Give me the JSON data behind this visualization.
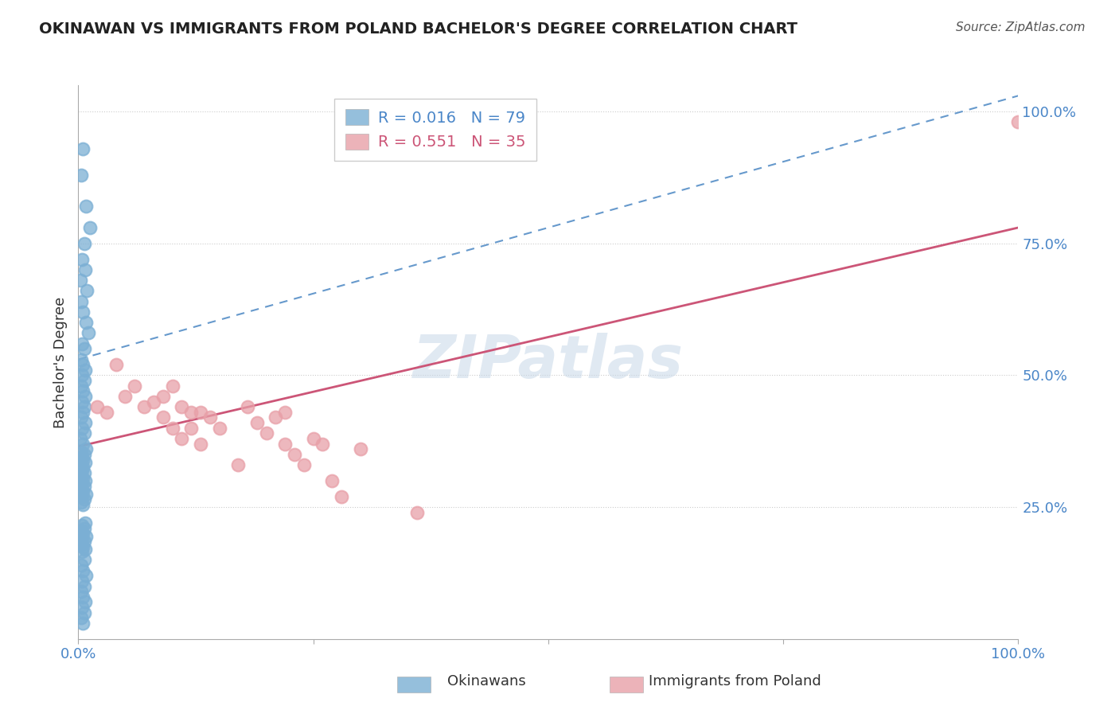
{
  "title": "OKINAWAN VS IMMIGRANTS FROM POLAND BACHELOR'S DEGREE CORRELATION CHART",
  "source": "Source: ZipAtlas.com",
  "ylabel": "Bachelor's Degree",
  "watermark": "ZIPatlas",
  "blue_label": "Okinawans",
  "pink_label": "Immigrants from Poland",
  "blue_R": 0.016,
  "blue_N": 79,
  "pink_R": 0.551,
  "pink_N": 35,
  "blue_color": "#7bafd4",
  "pink_color": "#e8a0a8",
  "blue_line_color": "#6699cc",
  "pink_line_color": "#cc5577",
  "blue_x": [
    0.005,
    0.003,
    0.008,
    0.012,
    0.006,
    0.004,
    0.007,
    0.002,
    0.009,
    0.003,
    0.005,
    0.008,
    0.011,
    0.004,
    0.006,
    0.003,
    0.005,
    0.007,
    0.004,
    0.006,
    0.003,
    0.005,
    0.007,
    0.004,
    0.006,
    0.005,
    0.003,
    0.007,
    0.004,
    0.006,
    0.002,
    0.005,
    0.008,
    0.003,
    0.006,
    0.004,
    0.005,
    0.007,
    0.003,
    0.005,
    0.004,
    0.006,
    0.003,
    0.005,
    0.007,
    0.004,
    0.006,
    0.003,
    0.005,
    0.008,
    0.004,
    0.006,
    0.003,
    0.005,
    0.007,
    0.004,
    0.006,
    0.003,
    0.005,
    0.008,
    0.004,
    0.006,
    0.003,
    0.005,
    0.007,
    0.004,
    0.006,
    0.003,
    0.005,
    0.008,
    0.004,
    0.006,
    0.003,
    0.005,
    0.007,
    0.004,
    0.006,
    0.003,
    0.005
  ],
  "blue_y": [
    0.93,
    0.88,
    0.82,
    0.78,
    0.75,
    0.72,
    0.7,
    0.68,
    0.66,
    0.64,
    0.62,
    0.6,
    0.58,
    0.56,
    0.55,
    0.53,
    0.52,
    0.51,
    0.5,
    0.49,
    0.48,
    0.47,
    0.46,
    0.45,
    0.44,
    0.43,
    0.42,
    0.41,
    0.4,
    0.39,
    0.38,
    0.37,
    0.36,
    0.355,
    0.35,
    0.345,
    0.34,
    0.335,
    0.33,
    0.325,
    0.32,
    0.315,
    0.31,
    0.305,
    0.3,
    0.295,
    0.29,
    0.285,
    0.28,
    0.275,
    0.27,
    0.265,
    0.26,
    0.255,
    0.22,
    0.215,
    0.21,
    0.205,
    0.2,
    0.195,
    0.19,
    0.185,
    0.18,
    0.175,
    0.17,
    0.165,
    0.15,
    0.14,
    0.13,
    0.12,
    0.11,
    0.1,
    0.09,
    0.08,
    0.07,
    0.06,
    0.05,
    0.04,
    0.03
  ],
  "pink_x": [
    0.02,
    0.05,
    0.03,
    0.06,
    0.08,
    0.1,
    0.07,
    0.09,
    0.12,
    0.09,
    0.11,
    0.13,
    0.1,
    0.12,
    0.14,
    0.11,
    0.13,
    0.15,
    0.04,
    0.19,
    0.22,
    0.2,
    0.18,
    0.21,
    0.25,
    0.22,
    0.26,
    0.23,
    0.27,
    0.3,
    0.17,
    0.24,
    0.28,
    0.36,
    1.0
  ],
  "pink_y": [
    0.44,
    0.46,
    0.43,
    0.48,
    0.45,
    0.48,
    0.44,
    0.46,
    0.43,
    0.42,
    0.44,
    0.43,
    0.4,
    0.4,
    0.42,
    0.38,
    0.37,
    0.4,
    0.52,
    0.41,
    0.43,
    0.39,
    0.44,
    0.42,
    0.38,
    0.37,
    0.37,
    0.35,
    0.3,
    0.36,
    0.33,
    0.33,
    0.27,
    0.24,
    0.98
  ],
  "blue_line_x0": 0.0,
  "blue_line_y0": 0.53,
  "blue_line_x1": 1.0,
  "blue_line_y1": 1.03,
  "pink_line_x0": 0.0,
  "pink_line_y0": 0.365,
  "pink_line_x1": 1.0,
  "pink_line_y1": 0.78,
  "xlim": [
    0.0,
    1.0
  ],
  "ylim": [
    0.0,
    1.05
  ],
  "yticks": [
    0.25,
    0.5,
    0.75,
    1.0
  ],
  "ytick_labels": [
    "25.0%",
    "50.0%",
    "75.0%",
    "100.0%"
  ],
  "title_fontsize": 14,
  "axis_label_fontsize": 13,
  "tick_fontsize": 13
}
